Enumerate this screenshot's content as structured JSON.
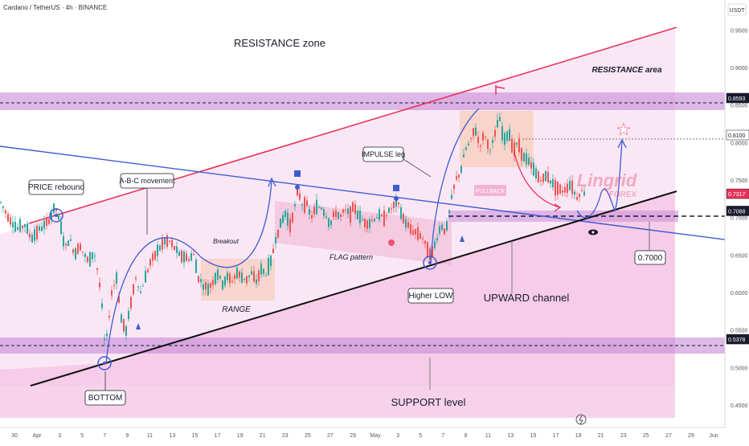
{
  "header": {
    "symbol": "Cardano / TetherUS · 4h · BINANCE"
  },
  "colors": {
    "accent_red": "#e8335a",
    "accent_blue": "#3f5bd1",
    "up_candle": "#26a69a",
    "down_candle": "#ef5350",
    "zone_pink": "#f3c1e3",
    "band_purple": "#c88bd8",
    "label_bg": "#1a1a2e"
  },
  "chart_data": {
    "type": "candlestick",
    "ylim": [
      0.42,
      0.99
    ],
    "y_axis_unit": "USDT",
    "y_ticks": [
      "0.9500",
      "0.9000",
      "0.8500",
      "0.8000",
      "0.7500",
      "0.7000",
      "0.6500",
      "0.6000",
      "0.5500",
      "0.5000",
      "0.4500"
    ],
    "y_tick_values": [
      0.95,
      0.9,
      0.85,
      0.8,
      0.75,
      0.7,
      0.65,
      0.6,
      0.55,
      0.5,
      0.45
    ],
    "x_ticks": [
      "30",
      "Apr",
      "3",
      "5",
      "7",
      "9",
      "11",
      "13",
      "15",
      "17",
      "19",
      "21",
      "23",
      "25",
      "27",
      "29",
      "May",
      "3",
      "5",
      "7",
      "9",
      "11",
      "13",
      "15",
      "17",
      "19",
      "21",
      "23",
      "25",
      "27",
      "29",
      "Jun"
    ],
    "price_labels": [
      {
        "text": "0.8593",
        "value": 0.8593,
        "style": "dark"
      },
      {
        "text": "0.8100",
        "value": 0.81,
        "style": "light"
      },
      {
        "text": "0.7317",
        "value": 0.7317,
        "style": "red"
      },
      {
        "text": "0.7088",
        "value": 0.7088,
        "style": "dark"
      },
      {
        "text": "0.5378",
        "value": 0.5378,
        "style": "dark"
      }
    ],
    "levels": {
      "resistance": 0.8593,
      "support": 0.5378,
      "pivot": 0.7088,
      "target": 0.81
    },
    "path_points": [
      [
        0,
        0.72
      ],
      [
        10,
        0.7
      ],
      [
        20,
        0.685
      ],
      [
        30,
        0.69
      ],
      [
        38,
        0.672
      ],
      [
        46,
        0.682
      ],
      [
        55,
        0.69
      ],
      [
        62,
        0.7
      ],
      [
        68,
        0.715
      ],
      [
        74,
        0.69
      ],
      [
        80,
        0.66
      ],
      [
        86,
        0.672
      ],
      [
        92,
        0.65
      ],
      [
        98,
        0.665
      ],
      [
        104,
        0.65
      ],
      [
        110,
        0.64
      ],
      [
        116,
        0.655
      ],
      [
        122,
        0.62
      ],
      [
        126,
        0.58
      ],
      [
        130,
        0.522
      ],
      [
        134,
        0.56
      ],
      [
        138,
        0.6
      ],
      [
        144,
        0.62
      ],
      [
        150,
        0.565
      ],
      [
        156,
        0.548
      ],
      [
        162,
        0.588
      ],
      [
        168,
        0.62
      ],
      [
        174,
        0.6
      ],
      [
        180,
        0.62
      ],
      [
        186,
        0.64
      ],
      [
        192,
        0.65
      ],
      [
        198,
        0.66
      ],
      [
        204,
        0.668
      ],
      [
        210,
        0.668
      ],
      [
        216,
        0.66
      ],
      [
        222,
        0.65
      ],
      [
        228,
        0.648
      ],
      [
        234,
        0.645
      ],
      [
        240,
        0.65
      ],
      [
        246,
        0.62
      ],
      [
        252,
        0.61
      ],
      [
        258,
        0.605
      ],
      [
        264,
        0.615
      ],
      [
        270,
        0.625
      ],
      [
        276,
        0.612
      ],
      [
        282,
        0.62
      ],
      [
        288,
        0.616
      ],
      [
        294,
        0.626
      ],
      [
        300,
        0.62
      ],
      [
        306,
        0.618
      ],
      [
        312,
        0.625
      ],
      [
        318,
        0.615
      ],
      [
        324,
        0.63
      ],
      [
        330,
        0.625
      ],
      [
        336,
        0.64
      ],
      [
        342,
        0.672
      ],
      [
        348,
        0.69
      ],
      [
        354,
        0.705
      ],
      [
        360,
        0.69
      ],
      [
        366,
        0.715
      ],
      [
        370,
        0.74
      ],
      [
        374,
        0.718
      ],
      [
        380,
        0.72
      ],
      [
        386,
        0.7
      ],
      [
        392,
        0.712
      ],
      [
        398,
        0.715
      ],
      [
        404,
        0.705
      ],
      [
        410,
        0.69
      ],
      [
        416,
        0.708
      ],
      [
        422,
        0.7
      ],
      [
        428,
        0.71
      ],
      [
        434,
        0.705
      ],
      [
        440,
        0.715
      ],
      [
        446,
        0.7
      ],
      [
        452,
        0.695
      ],
      [
        458,
        0.692
      ],
      [
        464,
        0.698
      ],
      [
        470,
        0.702
      ],
      [
        476,
        0.7
      ],
      [
        482,
        0.706
      ],
      [
        488,
        0.715
      ],
      [
        494,
        0.72
      ],
      [
        500,
        0.7
      ],
      [
        506,
        0.69
      ],
      [
        512,
        0.682
      ],
      [
        518,
        0.68
      ],
      [
        524,
        0.675
      ],
      [
        530,
        0.66
      ],
      [
        536,
        0.65
      ],
      [
        542,
        0.67
      ],
      [
        548,
        0.69
      ],
      [
        554,
        0.68
      ],
      [
        560,
        0.72
      ],
      [
        566,
        0.75
      ],
      [
        572,
        0.76
      ],
      [
        578,
        0.79
      ],
      [
        584,
        0.8
      ],
      [
        590,
        0.82
      ],
      [
        596,
        0.795
      ],
      [
        602,
        0.812
      ],
      [
        608,
        0.79
      ],
      [
        614,
        0.805
      ],
      [
        620,
        0.835
      ],
      [
        626,
        0.8
      ],
      [
        632,
        0.815
      ],
      [
        638,
        0.79
      ],
      [
        644,
        0.8
      ],
      [
        650,
        0.78
      ],
      [
        656,
        0.775
      ],
      [
        662,
        0.765
      ],
      [
        668,
        0.755
      ],
      [
        674,
        0.75
      ],
      [
        680,
        0.757
      ],
      [
        686,
        0.745
      ],
      [
        692,
        0.74
      ],
      [
        698,
        0.735
      ],
      [
        704,
        0.74
      ],
      [
        710,
        0.745
      ],
      [
        716,
        0.726
      ],
      [
        722,
        0.735
      ],
      [
        728,
        0.733
      ]
    ]
  },
  "annotations": {
    "resistance_zone": "RESISTANCE zone",
    "resistance_area": "RESISTANCE area",
    "price_rebound": "PRICE rebound",
    "abc_movement": "A-B-C movement",
    "breakout": "Breakout",
    "range": "RANGE",
    "flag_pattern": "FLAG pattern",
    "impulse_leg": "IMPULSE leg",
    "pullback": "PULLBACK",
    "higher_low": "Higher LOW",
    "upward_channel": "UPWARD channel",
    "support_level": "SUPPORT level",
    "bottom": "BOTTOM",
    "target_price": "0.7000"
  },
  "watermark": {
    "line1": "Lingrid",
    "line2": "FOREX"
  }
}
